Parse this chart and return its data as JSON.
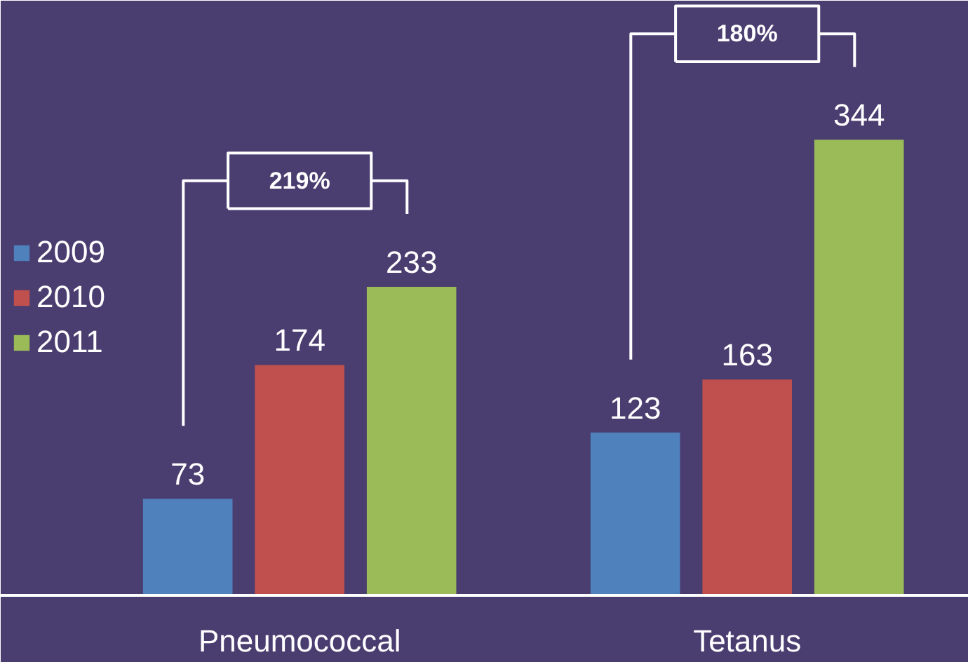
{
  "chart_data": {
    "type": "bar",
    "categories": [
      "Pneumococcal",
      "Tetanus"
    ],
    "series": [
      {
        "name": "2009",
        "color": "#4f81bd",
        "values": [
          73,
          123
        ]
      },
      {
        "name": "2010",
        "color": "#c0504d",
        "values": [
          174,
          163
        ]
      },
      {
        "name": "2011",
        "color": "#9bbb59",
        "values": [
          233,
          344
        ]
      }
    ],
    "data_labels": true,
    "ylim": [
      0,
      449
    ],
    "tick_labels": "x",
    "grid": false,
    "legend": "left",
    "annotations": [
      "219%",
      "180%"
    ]
  }
}
